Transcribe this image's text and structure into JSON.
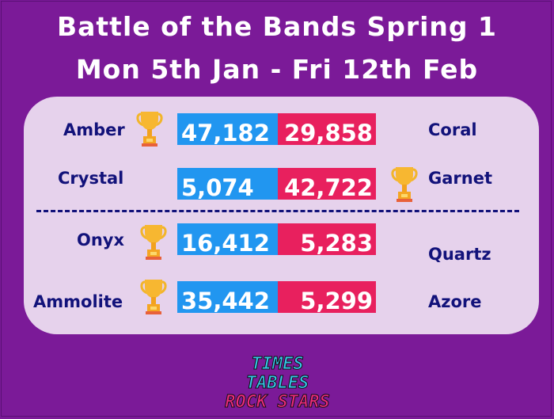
{
  "header": {
    "line1": "Battle of the Bands Spring 1",
    "line2": "Mon 5th Jan - Fri 12th Feb"
  },
  "colors": {
    "background": "#7b1a98",
    "panel": "#e6d2ec",
    "left_bar": "#2196f0",
    "right_bar": "#e8205e",
    "team_text": "#12127a"
  },
  "matches": [
    {
      "left": "Amber",
      "left_score": "47,182",
      "right_score": "29,858",
      "right": "Coral",
      "winner": "left"
    },
    {
      "left": "Crystal",
      "left_score": "5,074",
      "right_score": "42,722",
      "right": "Garnet",
      "winner": "right"
    },
    {
      "left": "Onyx",
      "left_score": "16,412",
      "right_score": "5,283",
      "right": "Quartz",
      "winner": "left"
    },
    {
      "left": "Ammolite",
      "left_score": "35,442",
      "right_score": "5,299",
      "right": "Azore",
      "winner": "left"
    }
  ],
  "logo": {
    "line1": "TIMES TABLES",
    "line2": "ROCK STARS"
  }
}
